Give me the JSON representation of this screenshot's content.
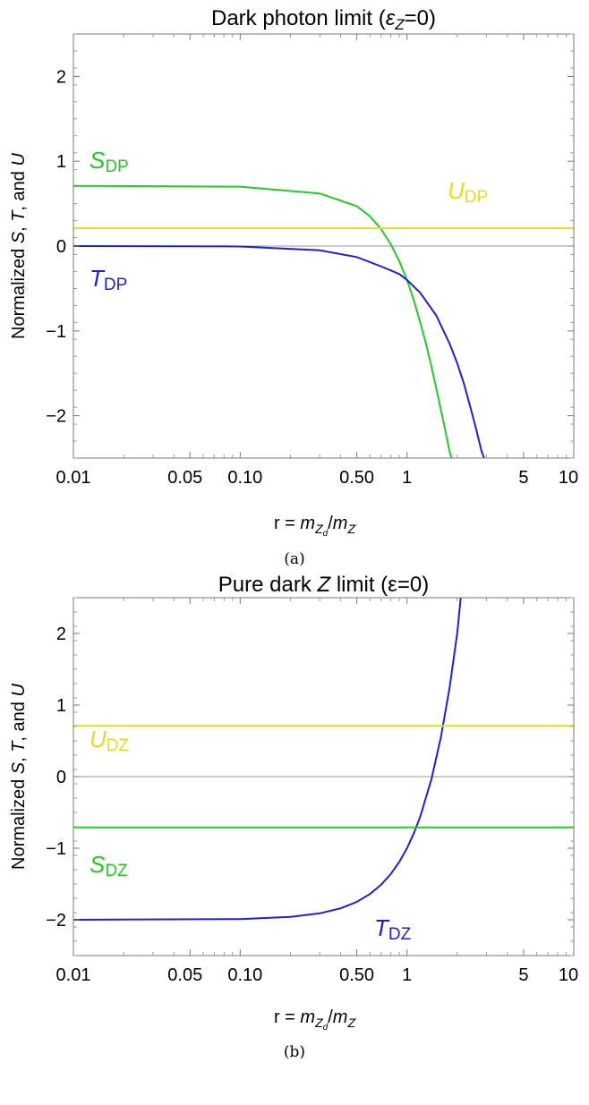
{
  "chart_data": [
    {
      "type": "line",
      "panel_caption": "(a)",
      "title_main": "Dark photon limit (",
      "title_symbol": "ε",
      "title_symbol_sub": "Z",
      "title_tail": "=0)",
      "ylabel_parts": [
        "Normalized ",
        "S",
        ", ",
        "T",
        ", and ",
        "U"
      ],
      "xlabel_parts": [
        "r = ",
        "m",
        "Z",
        "d",
        "/",
        "m",
        "Z"
      ],
      "xscale": "log",
      "xlim": [
        0.01,
        10
      ],
      "ylim": [
        -2.5,
        2.5
      ],
      "xticks": [
        0.01,
        0.05,
        0.1,
        0.5,
        1,
        5,
        10
      ],
      "xtick_labels": [
        "0.01",
        "0.05",
        "0.10",
        "0.50",
        "1",
        "5",
        "10"
      ],
      "yticks": [
        -2,
        -1,
        0,
        1,
        2
      ],
      "ytick_labels": [
        "−2",
        "−1",
        "0",
        "1",
        "2"
      ],
      "colors": {
        "S": "#22cc22",
        "T": "#1f1fd6",
        "U": "#e6dd1a",
        "zero": "#999999"
      },
      "series": [
        {
          "key": "S",
          "label_main": "S",
          "label_sub": "DP",
          "x": [
            0.01,
            0.1,
            0.3,
            0.5,
            0.6,
            0.7,
            0.8,
            0.9,
            1.0,
            1.1,
            1.2,
            1.3,
            1.4,
            1.5,
            1.6,
            1.7,
            1.8,
            1.85
          ],
          "y": [
            0.71,
            0.7,
            0.62,
            0.47,
            0.35,
            0.2,
            0.02,
            -0.18,
            -0.4,
            -0.64,
            -0.9,
            -1.15,
            -1.42,
            -1.68,
            -1.94,
            -2.18,
            -2.42,
            -2.5
          ]
        },
        {
          "key": "T",
          "label_main": "T",
          "label_sub": "DP",
          "x": [
            0.01,
            0.1,
            0.3,
            0.5,
            0.7,
            0.9,
            1.0,
            1.2,
            1.5,
            1.8,
            2.0,
            2.2,
            2.4,
            2.6,
            2.8,
            2.9
          ],
          "y": [
            0.0,
            -0.005,
            -0.05,
            -0.13,
            -0.24,
            -0.33,
            -0.4,
            -0.55,
            -0.82,
            -1.15,
            -1.38,
            -1.63,
            -1.9,
            -2.16,
            -2.42,
            -2.5
          ]
        },
        {
          "key": "U",
          "label_main": "U",
          "label_sub": "DP",
          "x": [
            0.01,
            10
          ],
          "y": [
            0.21,
            0.21
          ]
        }
      ]
    },
    {
      "type": "line",
      "panel_caption": "(b)",
      "title_main": "Pure dark ",
      "title_symbol": "Z",
      "title_symbol_sub": "",
      "title_tail": " limit (ε=0)",
      "ylabel_parts": [
        "Normalized ",
        "S",
        ", ",
        "T",
        ", and ",
        "U"
      ],
      "xlabel_parts": [
        "r = ",
        "m",
        "Z",
        "d",
        "/",
        "m",
        "Z"
      ],
      "xscale": "log",
      "xlim": [
        0.01,
        10
      ],
      "ylim": [
        -2.5,
        2.5
      ],
      "xticks": [
        0.01,
        0.05,
        0.1,
        0.5,
        1,
        5,
        10
      ],
      "xtick_labels": [
        "0.01",
        "0.05",
        "0.10",
        "0.50",
        "1",
        "5",
        "10"
      ],
      "yticks": [
        -2,
        -1,
        0,
        1,
        2
      ],
      "ytick_labels": [
        "−2",
        "−1",
        "0",
        "1",
        "2"
      ],
      "colors": {
        "S": "#22cc22",
        "T": "#1f1fd6",
        "U": "#e6dd1a",
        "zero": "#999999"
      },
      "series": [
        {
          "key": "T",
          "label_main": "T",
          "label_sub": "DZ",
          "x": [
            0.01,
            0.1,
            0.2,
            0.3,
            0.4,
            0.5,
            0.6,
            0.7,
            0.8,
            0.9,
            1.0,
            1.1,
            1.2,
            1.4,
            1.6,
            1.8,
            2.0,
            2.1
          ],
          "y": [
            -2.0,
            -1.99,
            -1.96,
            -1.91,
            -1.84,
            -1.75,
            -1.64,
            -1.51,
            -1.36,
            -1.19,
            -1.0,
            -0.79,
            -0.56,
            -0.04,
            0.56,
            1.24,
            2.0,
            2.5
          ]
        },
        {
          "key": "U",
          "label_main": "U",
          "label_sub": "DZ",
          "x": [
            0.01,
            10
          ],
          "y": [
            0.71,
            0.71
          ]
        },
        {
          "key": "S",
          "label_main": "S",
          "label_sub": "DZ",
          "x": [
            0.01,
            10
          ],
          "y": [
            -0.71,
            -0.71
          ]
        }
      ]
    }
  ]
}
